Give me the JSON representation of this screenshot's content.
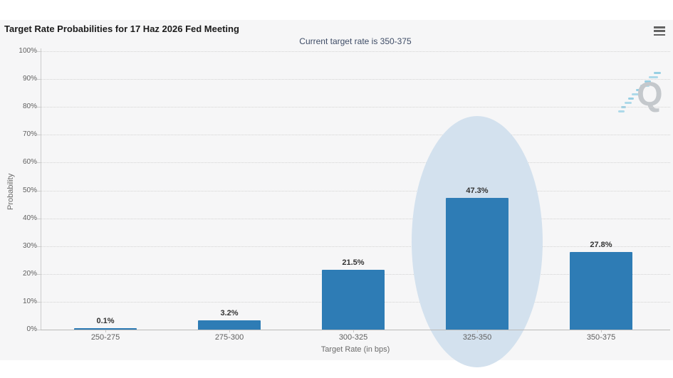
{
  "widget": {
    "title": "Target Rate Probabilities for 17 Haz 2026 Fed Meeting",
    "subtitle": "Current target rate is 350-375",
    "watermark_letter": "Q",
    "background": "#f6f6f7",
    "subtitle_color": "#3e4c66"
  },
  "chart_data": {
    "type": "bar",
    "title": "Target Rate Probabilities for 17 Haz 2026 Fed Meeting",
    "subtitle": "Current target rate is 350-375",
    "categories": [
      "250-275",
      "275-300",
      "300-325",
      "325-350",
      "350-375"
    ],
    "values": [
      0.1,
      3.2,
      21.5,
      47.3,
      27.8
    ],
    "value_labels": [
      "0.1%",
      "3.2%",
      "21.5%",
      "47.3%",
      "27.8%"
    ],
    "xlabel": "Target Rate (in bps)",
    "ylabel": "Probability",
    "ylim": [
      0,
      100
    ],
    "ytick_step": 10,
    "ytick_labels": [
      "0%",
      "10%",
      "20%",
      "30%",
      "40%",
      "50%",
      "60%",
      "70%",
      "80%",
      "90%",
      "100%"
    ],
    "grid": "dotted-horizontal",
    "legend": "none",
    "bar_color": "#2e7cb5",
    "highlight_category": "325-350",
    "highlight_color": "#d3e1ee"
  }
}
